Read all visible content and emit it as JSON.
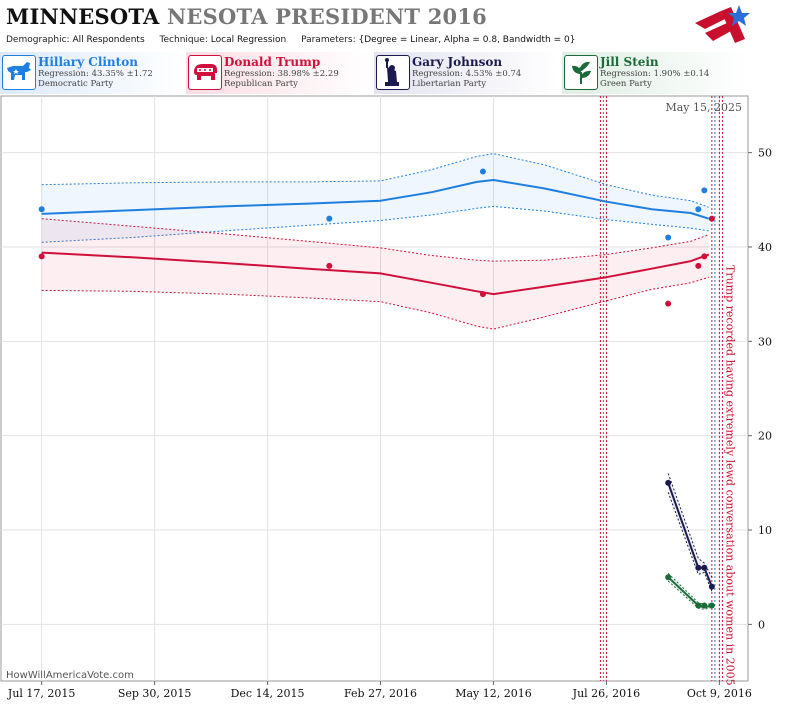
{
  "header": {
    "title_state": "MINNESOTA",
    "title_rest": "NESOTA PRESIDENT 2016",
    "demographic_label": "Demographic:",
    "demographic_value": "All Respondents",
    "technique_label": "Technique:",
    "technique_value": "Local Regression",
    "parameters_label": "Parameters:",
    "parameters_value": "{Degree = Linear, Alpha = 0.8, Bandwidth = 0}"
  },
  "candidates": [
    {
      "name": "Hillary Clinton",
      "regression": "Regression: 43.35% ±1.72",
      "party": "Democratic Party",
      "color": "#1f7fe0",
      "bg": "#e6f0fb",
      "icon": "donkey-icon"
    },
    {
      "name": "Donald Trump",
      "regression": "Regression: 38.98% ±2.29",
      "party": "Republican Party",
      "color": "#d0103a",
      "bg": "#fbe7ec",
      "icon": "elephant-icon"
    },
    {
      "name": "Gary Johnson",
      "regression": "Regression: 4.53% ±0.74",
      "party": "Libertarian Party",
      "color": "#1a1a4e",
      "bg": "#ececf4",
      "icon": "statue-of-liberty-icon"
    },
    {
      "name": "Jill Stein",
      "regression": "Regression: 1.90% ±0.14",
      "party": "Green Party",
      "color": "#1a6a3a",
      "bg": "#e7f1ea",
      "icon": "leaf-icon"
    }
  ],
  "chart_data": {
    "type": "line",
    "date_label": "May 15, 2025",
    "watermark": "HowWillAmericaVote.com",
    "x_ticks": [
      "Jul 17, 2015",
      "Sep 30, 2015",
      "Dec 14, 2015",
      "Feb 27, 2016",
      "May 12, 2016",
      "Jul 26, 2016",
      "Oct 9, 2016"
    ],
    "xlim": [
      "2015-06-20",
      "2016-10-28"
    ],
    "ylim": [
      -6,
      56
    ],
    "y_ticks": [
      0,
      10,
      20,
      30,
      40,
      50
    ],
    "grid": true,
    "annotation": "Trump recorded having extremely lewd conversation about women in 2005",
    "annotation_date": "2016-10-07",
    "event_lines": [
      {
        "date": "2016-07-22",
        "color": "#d0103a"
      },
      {
        "date": "2016-07-24",
        "color": "#1f7fe0"
      },
      {
        "date": "2016-07-26",
        "color": "#d0103a"
      },
      {
        "date": "2016-10-04",
        "color": "#d0103a"
      },
      {
        "date": "2016-10-06",
        "color": "#1f7fe0"
      },
      {
        "date": "2016-10-09",
        "color": "#d0103a"
      },
      {
        "date": "2016-10-11",
        "color": "#d0103a"
      }
    ],
    "series": [
      {
        "name": "Hillary Clinton",
        "color": "#1f7fe0",
        "trend": [
          [
            "2015-07-17",
            43.5
          ],
          [
            "2015-09-15",
            43.9
          ],
          [
            "2015-11-15",
            44.3
          ],
          [
            "2016-01-10",
            44.6
          ],
          [
            "2016-02-27",
            44.9
          ],
          [
            "2016-04-01",
            45.8
          ],
          [
            "2016-05-01",
            46.9
          ],
          [
            "2016-05-12",
            47.1
          ],
          [
            "2016-06-15",
            46.2
          ],
          [
            "2016-07-26",
            44.8
          ],
          [
            "2016-08-25",
            44.0
          ],
          [
            "2016-09-20",
            43.6
          ],
          [
            "2016-10-02",
            43.0
          ]
        ],
        "upper": [
          [
            "2015-07-17",
            46.6
          ],
          [
            "2015-09-15",
            46.8
          ],
          [
            "2015-11-15",
            46.9
          ],
          [
            "2016-01-10",
            46.9
          ],
          [
            "2016-02-27",
            47.0
          ],
          [
            "2016-04-01",
            48.2
          ],
          [
            "2016-05-01",
            49.6
          ],
          [
            "2016-05-12",
            49.9
          ],
          [
            "2016-06-15",
            48.7
          ],
          [
            "2016-07-26",
            46.6
          ],
          [
            "2016-08-25",
            45.5
          ],
          [
            "2016-09-20",
            44.9
          ],
          [
            "2016-10-02",
            44.2
          ]
        ],
        "lower": [
          [
            "2015-07-17",
            40.5
          ],
          [
            "2015-09-15",
            41.0
          ],
          [
            "2015-11-15",
            41.7
          ],
          [
            "2016-01-10",
            42.3
          ],
          [
            "2016-02-27",
            42.8
          ],
          [
            "2016-04-01",
            43.4
          ],
          [
            "2016-05-01",
            44.1
          ],
          [
            "2016-05-12",
            44.3
          ],
          [
            "2016-06-15",
            43.8
          ],
          [
            "2016-07-26",
            42.9
          ],
          [
            "2016-08-25",
            42.4
          ],
          [
            "2016-09-20",
            42.0
          ],
          [
            "2016-10-02",
            41.7
          ]
        ],
        "points": [
          [
            "2015-07-17",
            44
          ],
          [
            "2016-01-24",
            43
          ],
          [
            "2016-05-05",
            48
          ],
          [
            "2016-09-05",
            41
          ],
          [
            "2016-09-25",
            44
          ],
          [
            "2016-09-29",
            46
          ]
        ]
      },
      {
        "name": "Donald Trump",
        "color": "#d0103a",
        "trend": [
          [
            "2015-07-17",
            39.4
          ],
          [
            "2015-09-15",
            38.9
          ],
          [
            "2015-11-15",
            38.3
          ],
          [
            "2016-01-10",
            37.7
          ],
          [
            "2016-02-27",
            37.2
          ],
          [
            "2016-04-01",
            36.2
          ],
          [
            "2016-05-01",
            35.3
          ],
          [
            "2016-05-12",
            35.0
          ],
          [
            "2016-06-15",
            35.8
          ],
          [
            "2016-07-26",
            36.8
          ],
          [
            "2016-08-25",
            37.7
          ],
          [
            "2016-09-20",
            38.5
          ],
          [
            "2016-10-02",
            39.2
          ]
        ],
        "upper": [
          [
            "2015-07-17",
            43.0
          ],
          [
            "2015-09-15",
            42.2
          ],
          [
            "2015-11-15",
            41.4
          ],
          [
            "2016-01-10",
            40.6
          ],
          [
            "2016-02-27",
            39.9
          ],
          [
            "2016-04-01",
            39.1
          ],
          [
            "2016-05-01",
            38.6
          ],
          [
            "2016-05-12",
            38.5
          ],
          [
            "2016-06-15",
            38.6
          ],
          [
            "2016-07-26",
            39.2
          ],
          [
            "2016-08-25",
            39.9
          ],
          [
            "2016-09-20",
            40.6
          ],
          [
            "2016-10-02",
            41.3
          ]
        ],
        "lower": [
          [
            "2015-07-17",
            35.4
          ],
          [
            "2015-09-15",
            35.3
          ],
          [
            "2015-11-15",
            35.0
          ],
          [
            "2016-01-10",
            34.6
          ],
          [
            "2016-02-27",
            34.2
          ],
          [
            "2016-04-01",
            33.0
          ],
          [
            "2016-05-01",
            31.6
          ],
          [
            "2016-05-12",
            31.3
          ],
          [
            "2016-06-15",
            32.6
          ],
          [
            "2016-07-26",
            34.3
          ],
          [
            "2016-08-25",
            35.5
          ],
          [
            "2016-09-20",
            36.2
          ],
          [
            "2016-10-02",
            36.8
          ]
        ],
        "points": [
          [
            "2015-07-17",
            39
          ],
          [
            "2016-01-24",
            38
          ],
          [
            "2016-05-05",
            35
          ],
          [
            "2016-09-05",
            34
          ],
          [
            "2016-09-25",
            38
          ],
          [
            "2016-09-29",
            39
          ],
          [
            "2016-10-04",
            43
          ]
        ]
      },
      {
        "name": "Gary Johnson",
        "color": "#1a1a4e",
        "trend": [
          [
            "2016-09-05",
            15
          ],
          [
            "2016-09-25",
            6
          ],
          [
            "2016-09-29",
            6
          ],
          [
            "2016-10-04",
            4
          ]
        ],
        "upper": [
          [
            "2016-09-05",
            16
          ],
          [
            "2016-09-25",
            7
          ],
          [
            "2016-09-29",
            6.5
          ],
          [
            "2016-10-04",
            5
          ]
        ],
        "lower": [
          [
            "2016-09-05",
            14
          ],
          [
            "2016-09-25",
            5.3
          ],
          [
            "2016-09-29",
            5.5
          ],
          [
            "2016-10-04",
            3.5
          ]
        ],
        "points": [
          [
            "2016-09-05",
            15
          ],
          [
            "2016-09-25",
            6
          ],
          [
            "2016-09-29",
            6
          ],
          [
            "2016-10-04",
            4
          ]
        ]
      },
      {
        "name": "Jill Stein",
        "color": "#1a6a3a",
        "trend": [
          [
            "2016-09-05",
            5
          ],
          [
            "2016-09-25",
            2
          ],
          [
            "2016-09-29",
            1.8
          ],
          [
            "2016-10-04",
            2
          ]
        ],
        "upper": [
          [
            "2016-09-05",
            5.4
          ],
          [
            "2016-09-25",
            2.3
          ],
          [
            "2016-09-29",
            2.1
          ],
          [
            "2016-10-04",
            2.2
          ]
        ],
        "lower": [
          [
            "2016-09-05",
            4.6
          ],
          [
            "2016-09-25",
            1.7
          ],
          [
            "2016-09-29",
            1.6
          ],
          [
            "2016-10-04",
            1.8
          ]
        ],
        "points": [
          [
            "2016-09-05",
            5
          ],
          [
            "2016-09-25",
            2
          ],
          [
            "2016-09-29",
            2
          ],
          [
            "2016-10-04",
            2
          ]
        ]
      }
    ]
  }
}
